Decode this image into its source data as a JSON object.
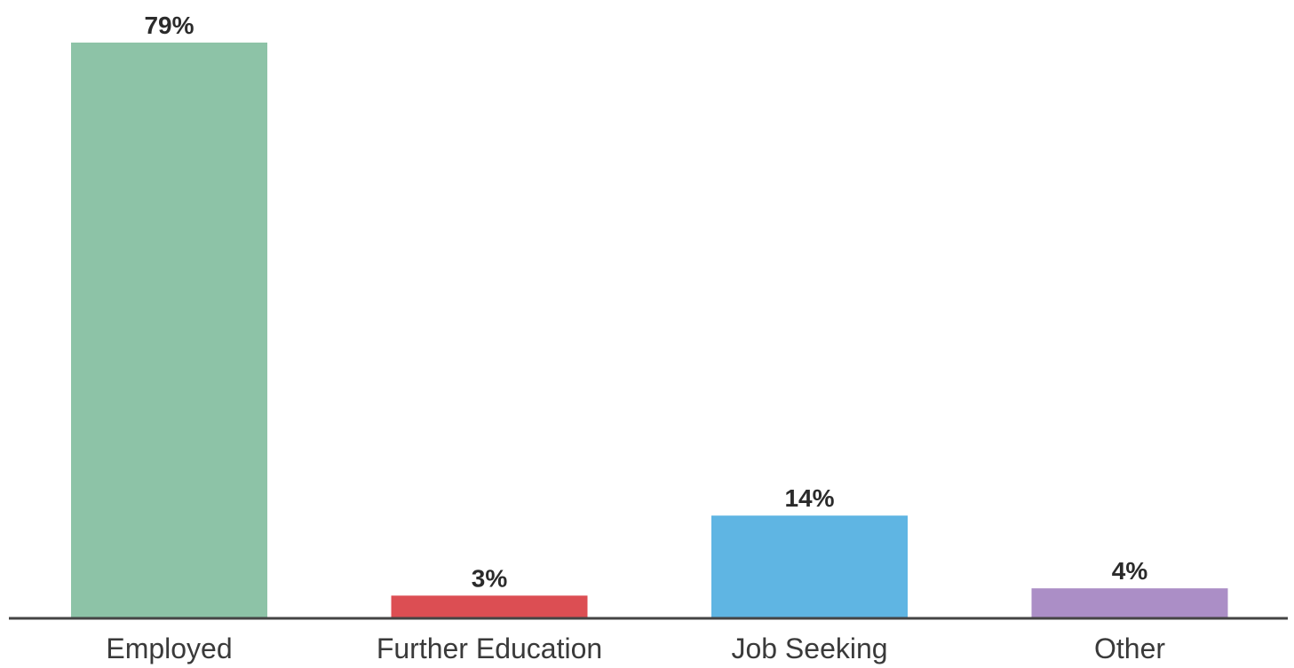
{
  "chart_data": {
    "type": "bar",
    "title": "",
    "xlabel": "",
    "ylabel": "",
    "categories": [
      "Employed",
      "Further Education",
      "Job Seeking",
      "Other"
    ],
    "values": [
      79,
      3,
      14,
      4
    ],
    "value_labels": [
      "79%",
      "3%",
      "14%",
      "4%"
    ],
    "unit": "%",
    "ylim": [
      0,
      79
    ],
    "colors": [
      "#8dc3a7",
      "#dc4e53",
      "#5fb5e3",
      "#ab8ec6"
    ],
    "grid": false,
    "legend": "none"
  }
}
